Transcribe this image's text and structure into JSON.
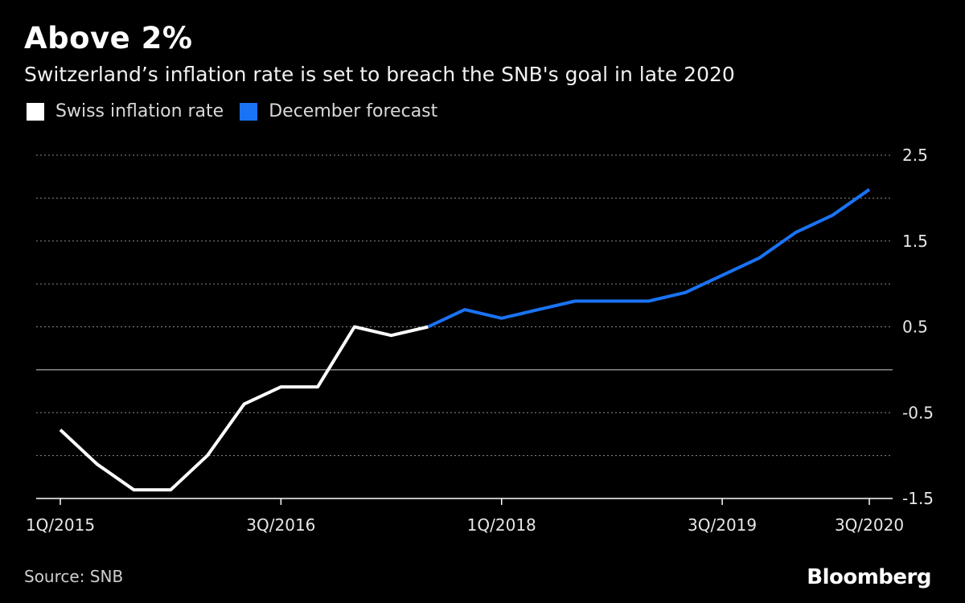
{
  "title": "Above 2%",
  "subtitle": "Switzerland’s inflation rate is set to breach the SNB's goal in late 2020",
  "legend": [
    {
      "label": "Swiss inflation rate",
      "color": "#ffffff"
    },
    {
      "label": "December forecast",
      "color": "#1a73f5"
    }
  ],
  "source": "Source: SNB",
  "brand": "Bloomberg",
  "chart_data": {
    "type": "line",
    "x": [
      "1Q/2015",
      "2Q/2015",
      "3Q/2015",
      "4Q/2015",
      "1Q/2016",
      "2Q/2016",
      "3Q/2016",
      "4Q/2016",
      "1Q/2017",
      "2Q/2017",
      "3Q/2017",
      "4Q/2017",
      "1Q/2018",
      "2Q/2018",
      "3Q/2018",
      "4Q/2018",
      "1Q/2019",
      "2Q/2019",
      "3Q/2019",
      "4Q/2019",
      "1Q/2020",
      "2Q/2020",
      "3Q/2020"
    ],
    "x_tick_labels": [
      "1Q/2015",
      "3Q/2016",
      "1Q/2018",
      "3Q/2019",
      "3Q/2020"
    ],
    "x_tick_indices": [
      0,
      6,
      12,
      18,
      22
    ],
    "y_tick_labels": [
      "2.5",
      "1.5",
      "0.5",
      "-0.5",
      "-1.5"
    ],
    "ylim": [
      -1.5,
      2.5
    ],
    "grid": true,
    "series": [
      {
        "name": "Swiss inflation rate",
        "color": "#ffffff",
        "values": [
          -0.7,
          -1.1,
          -1.4,
          -1.4,
          -1.0,
          -0.4,
          -0.2,
          -0.2,
          0.5,
          0.4,
          0.5,
          null,
          null,
          null,
          null,
          null,
          null,
          null,
          null,
          null,
          null,
          null,
          null
        ]
      },
      {
        "name": "December forecast",
        "color": "#1a73f5",
        "values": [
          null,
          null,
          null,
          null,
          null,
          null,
          null,
          null,
          null,
          null,
          0.5,
          0.7,
          0.6,
          0.7,
          0.8,
          0.8,
          0.8,
          0.9,
          1.1,
          1.3,
          1.6,
          1.8,
          2.1
        ]
      }
    ]
  }
}
